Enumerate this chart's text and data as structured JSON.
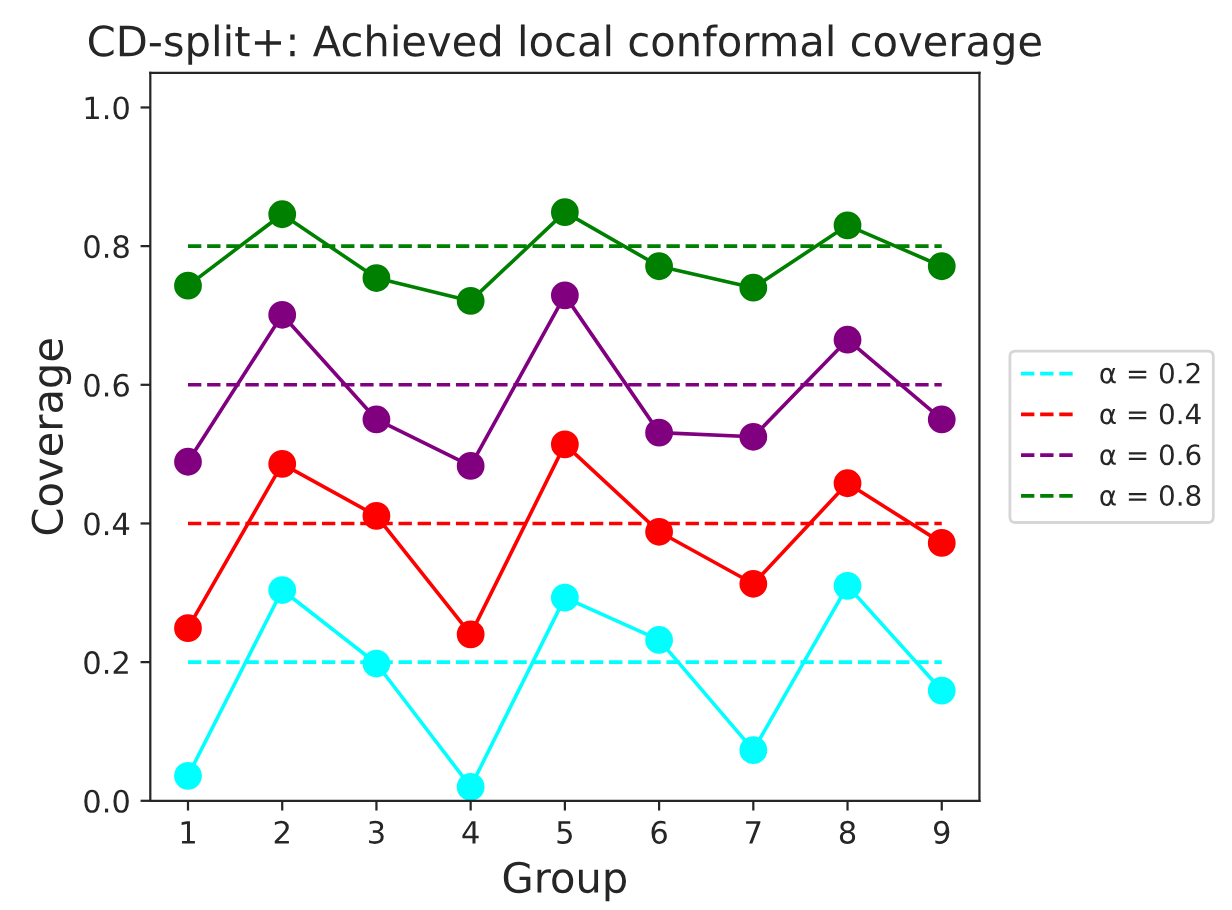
{
  "chart_data": {
    "type": "line",
    "title": "CD-split+: Achieved local conformal coverage",
    "xlabel": "Group",
    "ylabel": "Coverage",
    "x": [
      1,
      2,
      3,
      4,
      5,
      6,
      7,
      8,
      9
    ],
    "series": [
      {
        "name": "α = 0.2",
        "color": "#00ffff",
        "line_style": "dashed",
        "marker": "none",
        "values": [
          0.2,
          0.2,
          0.2,
          0.2,
          0.2,
          0.2,
          0.2,
          0.2,
          0.2
        ]
      },
      {
        "name": "α = 0.4",
        "color": "#ff0000",
        "line_style": "dashed",
        "marker": "none",
        "values": [
          0.4,
          0.4,
          0.4,
          0.4,
          0.4,
          0.4,
          0.4,
          0.4,
          0.4
        ]
      },
      {
        "name": "α = 0.6",
        "color": "#800080",
        "line_style": "dashed",
        "marker": "none",
        "values": [
          0.6,
          0.6,
          0.6,
          0.6,
          0.6,
          0.6,
          0.6,
          0.6,
          0.6
        ]
      },
      {
        "name": "α = 0.8",
        "color": "#008000",
        "line_style": "dashed",
        "marker": "none",
        "values": [
          0.8,
          0.8,
          0.8,
          0.8,
          0.8,
          0.8,
          0.8,
          0.8,
          0.8
        ]
      },
      {
        "color": "#00ffff",
        "line_style": "solid",
        "marker": "circle",
        "values": [
          0.036,
          0.304,
          0.198,
          0.02,
          0.293,
          0.232,
          0.073,
          0.31,
          0.159
        ]
      },
      {
        "color": "#ff0000",
        "line_style": "solid",
        "marker": "circle",
        "values": [
          0.249,
          0.486,
          0.411,
          0.24,
          0.514,
          0.388,
          0.313,
          0.458,
          0.372
        ]
      },
      {
        "color": "#800080",
        "line_style": "solid",
        "marker": "circle",
        "values": [
          0.489,
          0.701,
          0.55,
          0.483,
          0.729,
          0.531,
          0.525,
          0.665,
          0.55
        ]
      },
      {
        "color": "#008000",
        "line_style": "solid",
        "marker": "circle",
        "values": [
          0.743,
          0.846,
          0.754,
          0.721,
          0.849,
          0.771,
          0.74,
          0.83,
          0.771
        ]
      }
    ],
    "xlim": [
      0.6,
      9.4
    ],
    "xticks": [
      1,
      2,
      3,
      4,
      5,
      6,
      7,
      8,
      9
    ],
    "ylim": [
      0,
      1.05
    ],
    "yticks": [
      {
        "value": 0,
        "label": "0.0"
      },
      {
        "value": 0.2,
        "label": "0.2"
      },
      {
        "value": 0.4,
        "label": "0.4"
      },
      {
        "value": 0.6,
        "label": "0.6"
      },
      {
        "value": 0.8,
        "label": "0.8"
      },
      {
        "value": 1,
        "label": "1.0"
      }
    ],
    "grid": false,
    "legend": "right"
  }
}
